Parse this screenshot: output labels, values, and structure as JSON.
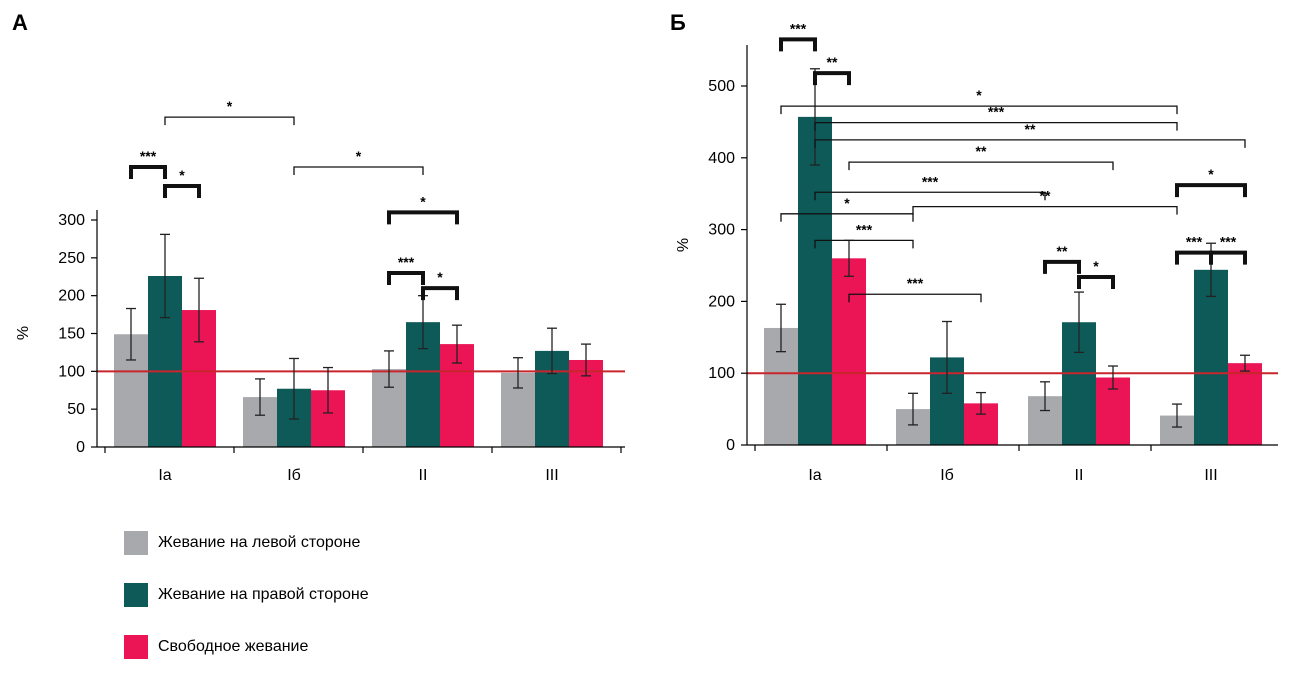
{
  "colors": {
    "left": "#a7a9ac",
    "right": "#0e5a59",
    "free": "#eb1556",
    "ref": "#c8252c"
  },
  "legend": [
    {
      "label": "Жевание на левой стороне",
      "color": "#a7a9ac"
    },
    {
      "label": "Жевание на правой стороне",
      "color": "#0e5a59"
    },
    {
      "label": "Свободное жевание",
      "color": "#eb1556"
    }
  ],
  "chart_data": [
    {
      "panel": "А",
      "type": "bar",
      "ylabel": "%",
      "ylim": [
        0,
        300
      ],
      "yticks": [
        0,
        50,
        100,
        150,
        200,
        250,
        300
      ],
      "reference_line": 100,
      "categories": [
        "Iа",
        "Iб",
        "II",
        "III"
      ],
      "series": [
        {
          "name": "Жевание на левой стороне",
          "values": [
            149,
            66,
            103,
            98
          ],
          "errors": [
            34,
            24,
            24,
            20
          ]
        },
        {
          "name": "Жевание на правой стороне",
          "values": [
            226,
            77,
            165,
            127
          ],
          "errors": [
            55,
            40,
            35,
            30
          ]
        },
        {
          "name": "Свободное жевание",
          "values": [
            181,
            75,
            136,
            115
          ],
          "errors": [
            42,
            30,
            25,
            21
          ]
        }
      ],
      "significance": [
        {
          "label": "***",
          "from": [
            0,
            0
          ],
          "to": [
            0,
            1
          ],
          "value": 370,
          "bold": true
        },
        {
          "label": "*",
          "from": [
            0,
            1
          ],
          "to": [
            0,
            2
          ],
          "value": 345,
          "bold": true
        },
        {
          "label": "*",
          "from": [
            0,
            1
          ],
          "to": [
            1,
            1
          ],
          "value": 436,
          "bold": false
        },
        {
          "label": "*",
          "from": [
            1,
            1
          ],
          "to": [
            2,
            1
          ],
          "value": 370,
          "bold": false
        },
        {
          "label": "*",
          "from": [
            2,
            0
          ],
          "to": [
            2,
            2
          ],
          "value": 310,
          "bold": true
        },
        {
          "label": "***",
          "from": [
            2,
            0
          ],
          "to": [
            2,
            1
          ],
          "value": 230,
          "bold": true
        },
        {
          "label": "*",
          "from": [
            2,
            1
          ],
          "to": [
            2,
            2
          ],
          "value": 210,
          "bold": true
        }
      ]
    },
    {
      "panel": "Б",
      "type": "bar",
      "ylabel": "%",
      "ylim": [
        0,
        550
      ],
      "yticks": [
        0,
        100,
        200,
        300,
        400,
        500
      ],
      "reference_line": 100,
      "categories": [
        "Iа",
        "Iб",
        "II",
        "III"
      ],
      "series": [
        {
          "name": "Жевание на левой стороне",
          "values": [
            163,
            50,
            68,
            41
          ],
          "errors": [
            33,
            22,
            20,
            16
          ]
        },
        {
          "name": "Жевание на правой стороне",
          "values": [
            457,
            122,
            171,
            244
          ],
          "errors": [
            67,
            50,
            42,
            37
          ]
        },
        {
          "name": "Свободное жевание",
          "values": [
            260,
            58,
            94,
            114
          ],
          "errors": [
            25,
            15,
            16,
            11
          ]
        }
      ],
      "significance": [
        {
          "label": "***",
          "from": [
            0,
            0
          ],
          "to": [
            0,
            1
          ],
          "value": 565,
          "bold": true
        },
        {
          "label": "**",
          "from": [
            0,
            1
          ],
          "to": [
            0,
            2
          ],
          "value": 518,
          "bold": true
        },
        {
          "label": "*",
          "from": [
            0,
            0
          ],
          "to": [
            3,
            0
          ],
          "value": 472,
          "bold": false
        },
        {
          "label": "***",
          "from": [
            0,
            1
          ],
          "to": [
            3,
            0
          ],
          "value": 449,
          "bold": false
        },
        {
          "label": "**",
          "from": [
            0,
            1
          ],
          "to": [
            3,
            2
          ],
          "value": 425,
          "bold": false
        },
        {
          "label": "**",
          "from": [
            0,
            2
          ],
          "to": [
            2,
            2
          ],
          "value": 394,
          "bold": false
        },
        {
          "label": "***",
          "from": [
            0,
            1
          ],
          "to": [
            2,
            0
          ],
          "value": 352,
          "bold": false
        },
        {
          "label": "*",
          "from": [
            0,
            0
          ],
          "to": [
            1,
            0
          ],
          "value": 322,
          "bold": false
        },
        {
          "label": "**",
          "from": [
            1,
            0
          ],
          "to": [
            3,
            0
          ],
          "value": 332,
          "bold": false
        },
        {
          "label": "***",
          "from": [
            0,
            1
          ],
          "to": [
            1,
            0
          ],
          "value": 285,
          "bold": false
        },
        {
          "label": "***",
          "from": [
            0,
            2
          ],
          "to": [
            1,
            2
          ],
          "value": 210,
          "bold": false
        },
        {
          "label": "**",
          "from": [
            2,
            0
          ],
          "to": [
            2,
            1
          ],
          "value": 255,
          "bold": true
        },
        {
          "label": "*",
          "from": [
            2,
            1
          ],
          "to": [
            2,
            2
          ],
          "value": 234,
          "bold": true
        },
        {
          "label": "*",
          "from": [
            3,
            0
          ],
          "to": [
            3,
            2
          ],
          "value": 362,
          "bold": true
        },
        {
          "label": "***",
          "from": [
            3,
            0
          ],
          "to": [
            3,
            1
          ],
          "value": 268,
          "bold": true
        },
        {
          "label": "***",
          "from": [
            3,
            1
          ],
          "to": [
            3,
            2
          ],
          "value": 268,
          "bold": true
        }
      ]
    }
  ]
}
